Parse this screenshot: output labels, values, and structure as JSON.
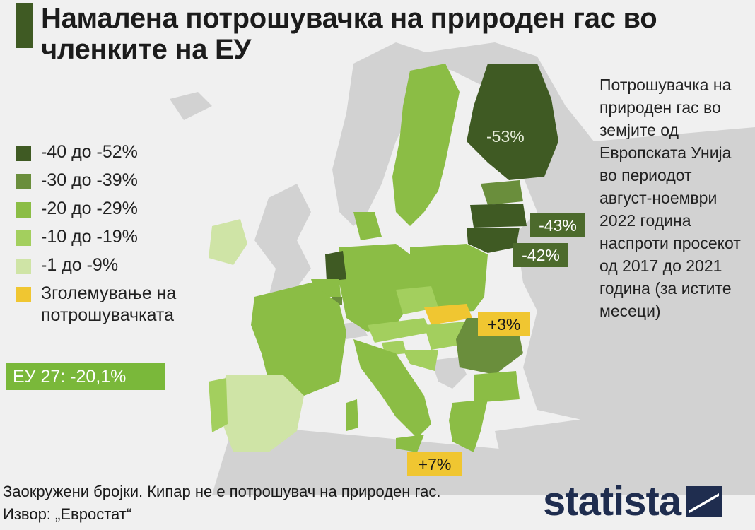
{
  "title": "Намалена потрошувачка на природен гас во членките на ЕУ",
  "legend": [
    {
      "label": "-40 до -52%",
      "color": "#3f5a23"
    },
    {
      "label": "-30 до -39%",
      "color": "#6a8e3c"
    },
    {
      "label": "-20 до -29%",
      "color": "#8bbd45"
    },
    {
      "label": "-10 до -19%",
      "color": "#a3cf5e"
    },
    {
      "label": "-1 до -9%",
      "color": "#cfe4a6"
    },
    {
      "label": "Зголемување на потрошувачката",
      "color": "#f0c631"
    }
  ],
  "eu_total": "ЕУ 27: -20,1%",
  "note": "Потрошувачка на природен гас во земјите од Европската Унија во периодот август-ноември 2022 година наспроти просекот од 2017 до 2021 година (за истите месеци)",
  "labels": {
    "finland": "-53%",
    "latvia": "-43%",
    "lithuania": "-42%",
    "slovakia": "+3%",
    "greece": "+7%"
  },
  "footer": {
    "line1": "Заокружени бројки. Кипар не е потрошувач на природен гас.",
    "line2": "Извор: „Евростат“"
  },
  "brand": "statista",
  "colors": {
    "background": "#f0f0f0",
    "non_eu_land": "#d2d2d2",
    "darkest": "#3f5a23",
    "dark": "#6a8e3c",
    "mid": "#8bbd45",
    "light": "#a3cf5e",
    "lightest": "#cfe4a6",
    "increase": "#f0c631"
  }
}
